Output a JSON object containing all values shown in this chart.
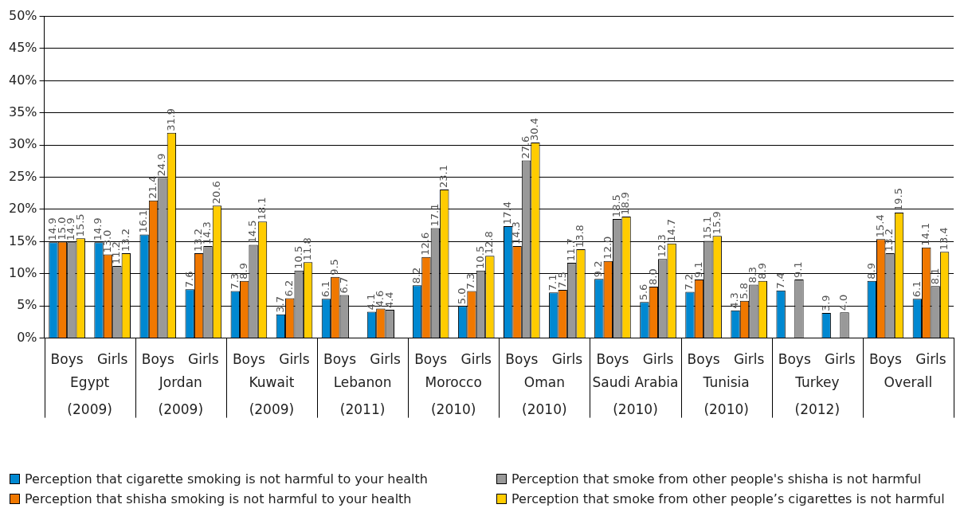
{
  "chart_data": {
    "type": "bar",
    "categories": [
      "Boys",
      "Girls",
      "Boys",
      "Girls",
      "Boys",
      "Girls",
      "Boys",
      "Girls",
      "Boys",
      "Girls",
      "Boys",
      "Girls",
      "Boys",
      "Girls",
      "Boys",
      "Girls",
      "Boys",
      "Girls",
      "Boys",
      "Girls"
    ],
    "annotations": [
      "Egypt\n(2009)",
      "Jordan\n(2009)",
      "Kuwait\n(2009)",
      "Lebanon\n(2011)",
      "Morocco\n(2010)",
      "Oman\n(2010)",
      "Saudi Arabia\n(2010)",
      "Tunisia\n(2010)",
      "Turkey\n(2012)",
      "Overall"
    ],
    "series": [
      {
        "name": "Perception that cigarette smoking is not harmful to your health",
        "color": "#0088d1",
        "values": [
          14.9,
          14.9,
          16.1,
          7.6,
          7.3,
          3.7,
          6.1,
          4.1,
          8.2,
          5.0,
          17.4,
          7.1,
          9.2,
          5.6,
          7.2,
          4.3,
          7.4,
          3.9,
          8.9,
          6.1
        ],
        "value_labels": [
          "14.9",
          "14.9",
          "16.1",
          "7.6",
          "7.3",
          "3.7",
          "6.1",
          "4.1",
          "8.2",
          "5.0",
          "17.4",
          "7.1",
          "9.2",
          "5.6",
          "7.2",
          "4.3",
          "7.4",
          "3.9",
          "8.9",
          "6.1"
        ]
      },
      {
        "name": "Perception that shisha smoking is not harmful to your health",
        "color": "#f07800",
        "values": [
          15.0,
          13.0,
          21.4,
          13.2,
          8.9,
          6.2,
          9.5,
          4.6,
          12.6,
          7.3,
          14.3,
          7.5,
          12.0,
          8.0,
          9.1,
          5.8,
          null,
          null,
          15.4,
          14.1
        ],
        "value_labels": [
          "15.0",
          "13.0",
          "21.4",
          "13.2",
          "8.9",
          "6.2",
          "9.5",
          "4.6",
          "12.6",
          "7.3",
          "14.3",
          "7.5",
          "12.0",
          "8.0",
          "9.1",
          "5.8",
          null,
          null,
          "15.4",
          "14.1"
        ]
      },
      {
        "name": "Perception that smoke from other people's shisha is not harmful",
        "color": "#999999",
        "values": [
          14.9,
          11.2,
          24.9,
          14.3,
          14.5,
          10.5,
          6.7,
          4.4,
          17.1,
          10.5,
          27.6,
          11.7,
          18.5,
          12.3,
          15.1,
          8.3,
          9.1,
          4.0,
          13.2,
          8.1
        ],
        "value_labels": [
          "14.9",
          "11.2",
          "24.9",
          "14.3",
          "14.5",
          "10.5",
          "6.7",
          "4.4",
          "17.1",
          "10.5",
          "27.6",
          "11.7",
          "18.5",
          "12.3",
          "15.1",
          "8.3",
          "9.1",
          "4.0",
          "13.2",
          "8.1"
        ]
      },
      {
        "name": "Perception that smoke from other people’s cigarettes is not harmful",
        "color": "#ffcc00",
        "values": [
          15.5,
          13.2,
          31.9,
          20.6,
          18.1,
          11.8,
          null,
          null,
          23.1,
          12.8,
          30.4,
          13.8,
          18.9,
          14.7,
          15.9,
          8.9,
          null,
          null,
          19.5,
          13.4
        ],
        "value_labels": [
          "15.5",
          "13.2",
          "31.9",
          "20.6",
          "18.1",
          "11.8",
          null,
          null,
          "23.1",
          "12.8",
          "30.4",
          "13.8",
          "18.9",
          "14.7",
          "15.9",
          "8.9",
          null,
          null,
          "19.5",
          "13.4"
        ]
      }
    ],
    "ylim": [
      0,
      50
    ],
    "yticks": [
      {
        "value": 0,
        "label": "0%"
      },
      {
        "value": 5,
        "label": "5%"
      },
      {
        "value": 10,
        "label": "10%"
      },
      {
        "value": 15,
        "label": "15%"
      },
      {
        "value": 20,
        "label": "20%"
      },
      {
        "value": 25,
        "label": "25%"
      },
      {
        "value": 30,
        "label": "30%"
      },
      {
        "value": 35,
        "label": "35%"
      },
      {
        "value": 40,
        "label": "40%"
      },
      {
        "value": 45,
        "label": "45%"
      },
      {
        "value": 50,
        "label": "50%"
      }
    ],
    "grid": "y",
    "legend": "bottom"
  }
}
